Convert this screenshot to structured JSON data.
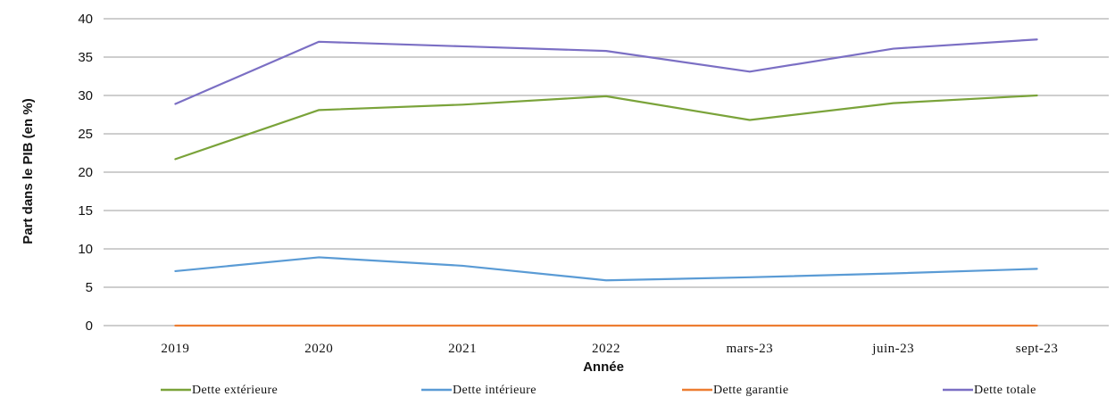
{
  "chart_data": {
    "type": "line",
    "title": "",
    "xlabel": "Année",
    "ylabel": "Part dans le PIB (en %)",
    "ylim": [
      0,
      40
    ],
    "yticks": [
      0,
      5,
      10,
      15,
      20,
      25,
      30,
      35,
      40
    ],
    "grid": true,
    "legend_position": "bottom",
    "categories": [
      "2019",
      "2020",
      "2021",
      "2022",
      "mars-23",
      "juin-23",
      "sept-23"
    ],
    "series": [
      {
        "name": "Dette extérieure",
        "color": "#7aa33a",
        "values": [
          21.7,
          28.1,
          28.8,
          29.9,
          26.8,
          29.0,
          30.0
        ]
      },
      {
        "name": "Dette intérieure",
        "color": "#5a9bd5",
        "values": [
          7.1,
          8.9,
          7.8,
          5.9,
          6.3,
          6.8,
          7.4
        ]
      },
      {
        "name": "Dette garantie",
        "color": "#ed7d31",
        "values": [
          0,
          0,
          0,
          0,
          0,
          0,
          0
        ]
      },
      {
        "name": "Dette totale",
        "color": "#7b6fc4",
        "values": [
          28.9,
          37.0,
          36.4,
          35.8,
          33.1,
          36.1,
          37.3
        ]
      }
    ]
  }
}
